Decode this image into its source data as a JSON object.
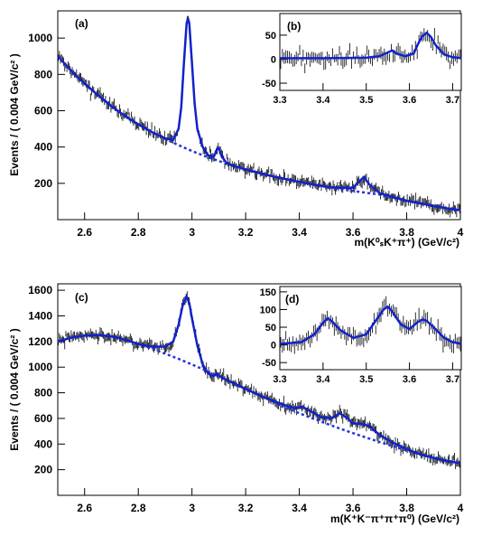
{
  "chart_data": [
    {
      "id": "a",
      "type": "line",
      "panel_label": "(a)",
      "xlabel": "m(K⁰ₛK⁺π⁺) (GeV/c²)",
      "ylabel": "Events / ( 0.004 GeV/c² )",
      "xlim": [
        2.5,
        4.0
      ],
      "ylim": [
        0,
        1150
      ],
      "xticks": [
        2.6,
        2.8,
        3.0,
        3.2,
        3.4,
        3.6,
        3.8,
        4.0
      ],
      "xtick_labels": [
        "2.6",
        "2.8",
        "3",
        "3.2",
        "3.4",
        "3.6",
        "3.8",
        "4"
      ],
      "yticks": [
        200,
        400,
        600,
        800,
        1000
      ],
      "ytick_labels": [
        "200",
        "400",
        "600",
        "800",
        "1000"
      ],
      "background": [
        [
          2.5,
          900
        ],
        [
          2.55,
          820
        ],
        [
          2.6,
          750
        ],
        [
          2.65,
          685
        ],
        [
          2.7,
          625
        ],
        [
          2.75,
          572
        ],
        [
          2.8,
          525
        ],
        [
          2.85,
          483
        ],
        [
          2.9,
          445
        ],
        [
          2.95,
          410
        ],
        [
          3.0,
          378
        ],
        [
          3.05,
          349
        ],
        [
          3.1,
          323
        ],
        [
          3.15,
          299
        ],
        [
          3.2,
          277
        ],
        [
          3.25,
          257
        ],
        [
          3.3,
          239
        ],
        [
          3.35,
          223
        ],
        [
          3.4,
          208
        ],
        [
          3.45,
          194
        ],
        [
          3.5,
          181
        ],
        [
          3.55,
          169
        ],
        [
          3.6,
          158
        ],
        [
          3.65,
          148
        ],
        [
          3.7,
          138
        ],
        [
          3.75,
          120
        ],
        [
          3.8,
          104
        ],
        [
          3.85,
          90
        ],
        [
          3.9,
          75
        ],
        [
          3.95,
          62
        ],
        [
          4.0,
          52
        ]
      ],
      "total_fit": [
        [
          2.5,
          900
        ],
        [
          2.55,
          820
        ],
        [
          2.6,
          750
        ],
        [
          2.65,
          685
        ],
        [
          2.7,
          625
        ],
        [
          2.75,
          572
        ],
        [
          2.8,
          525
        ],
        [
          2.85,
          483
        ],
        [
          2.9,
          448
        ],
        [
          2.93,
          440
        ],
        [
          2.95,
          500
        ],
        [
          2.96,
          620
        ],
        [
          2.97,
          860
        ],
        [
          2.98,
          1080
        ],
        [
          2.985,
          1110
        ],
        [
          2.99,
          1080
        ],
        [
          3.0,
          860
        ],
        [
          3.01,
          640
        ],
        [
          3.02,
          500
        ],
        [
          3.04,
          400
        ],
        [
          3.06,
          355
        ],
        [
          3.08,
          345
        ],
        [
          3.095,
          390
        ],
        [
          3.1,
          395
        ],
        [
          3.11,
          350
        ],
        [
          3.13,
          310
        ],
        [
          3.15,
          299
        ],
        [
          3.2,
          277
        ],
        [
          3.25,
          257
        ],
        [
          3.3,
          239
        ],
        [
          3.35,
          223
        ],
        [
          3.4,
          208
        ],
        [
          3.45,
          194
        ],
        [
          3.5,
          181
        ],
        [
          3.55,
          175
        ],
        [
          3.6,
          175
        ],
        [
          3.63,
          220
        ],
        [
          3.64,
          235
        ],
        [
          3.66,
          195
        ],
        [
          3.7,
          145
        ],
        [
          3.75,
          125
        ],
        [
          3.8,
          104
        ],
        [
          3.85,
          90
        ],
        [
          3.9,
          75
        ],
        [
          3.95,
          62
        ],
        [
          4.0,
          52
        ]
      ],
      "peak_data": [
        [
          2.98,
          1125
        ],
        [
          2.985,
          1110
        ],
        [
          3.1,
          420
        ],
        [
          3.64,
          240
        ]
      ]
    },
    {
      "id": "b",
      "type": "line",
      "panel_label": "(b)",
      "inset": true,
      "xlim": [
        3.3,
        3.72
      ],
      "ylim": [
        -65,
        95
      ],
      "xticks": [
        3.3,
        3.4,
        3.5,
        3.6,
        3.7
      ],
      "xtick_labels": [
        "3.3",
        "3.4",
        "3.5",
        "3.6",
        "3.7"
      ],
      "yticks": [
        -50,
        0,
        50
      ],
      "ytick_labels": [
        "-50",
        "0",
        "50"
      ],
      "fit": [
        [
          3.3,
          2
        ],
        [
          3.4,
          2
        ],
        [
          3.5,
          3
        ],
        [
          3.53,
          6
        ],
        [
          3.55,
          14
        ],
        [
          3.56,
          18
        ],
        [
          3.57,
          12
        ],
        [
          3.59,
          6
        ],
        [
          3.61,
          12
        ],
        [
          3.62,
          32
        ],
        [
          3.63,
          48
        ],
        [
          3.64,
          55
        ],
        [
          3.65,
          46
        ],
        [
          3.66,
          30
        ],
        [
          3.68,
          10
        ],
        [
          3.7,
          4
        ],
        [
          3.72,
          2
        ]
      ]
    },
    {
      "id": "c",
      "type": "line",
      "panel_label": "(c)",
      "xlabel": "m(K⁺K⁻π⁺π⁺π⁰) (GeV/c²)",
      "ylabel": "Events / ( 0.004 GeV/c² )",
      "xlim": [
        2.5,
        4.0
      ],
      "ylim": [
        0,
        1650
      ],
      "xticks": [
        2.6,
        2.8,
        3.0,
        3.2,
        3.4,
        3.6,
        3.8,
        4.0
      ],
      "xtick_labels": [
        "2.6",
        "2.8",
        "3",
        "3.2",
        "3.4",
        "3.6",
        "3.8",
        "4"
      ],
      "yticks": [
        200,
        400,
        600,
        800,
        1000,
        1200,
        1400,
        1600
      ],
      "ytick_labels": [
        "200",
        "400",
        "600",
        "800",
        "1000",
        "1200",
        "1400",
        "1600"
      ],
      "background": [
        [
          2.5,
          1200
        ],
        [
          2.55,
          1230
        ],
        [
          2.6,
          1245
        ],
        [
          2.65,
          1250
        ],
        [
          2.7,
          1240
        ],
        [
          2.75,
          1215
        ],
        [
          2.8,
          1180
        ],
        [
          2.85,
          1145
        ],
        [
          2.9,
          1105
        ],
        [
          2.95,
          1065
        ],
        [
          3.0,
          1020
        ],
        [
          3.05,
          975
        ],
        [
          3.1,
          930
        ],
        [
          3.15,
          880
        ],
        [
          3.2,
          830
        ],
        [
          3.25,
          782
        ],
        [
          3.3,
          733
        ],
        [
          3.35,
          685
        ],
        [
          3.4,
          640
        ],
        [
          3.45,
          600
        ],
        [
          3.5,
          560
        ],
        [
          3.55,
          522
        ],
        [
          3.6,
          485
        ],
        [
          3.65,
          450
        ],
        [
          3.7,
          415
        ],
        [
          3.75,
          382
        ],
        [
          3.8,
          350
        ],
        [
          3.85,
          320
        ],
        [
          3.9,
          292
        ],
        [
          3.95,
          268
        ],
        [
          4.0,
          250
        ]
      ],
      "total_fit": [
        [
          2.5,
          1200
        ],
        [
          2.55,
          1230
        ],
        [
          2.6,
          1245
        ],
        [
          2.65,
          1250
        ],
        [
          2.7,
          1240
        ],
        [
          2.75,
          1215
        ],
        [
          2.8,
          1180
        ],
        [
          2.85,
          1160
        ],
        [
          2.9,
          1160
        ],
        [
          2.93,
          1200
        ],
        [
          2.95,
          1330
        ],
        [
          2.965,
          1480
        ],
        [
          2.98,
          1550
        ],
        [
          2.99,
          1500
        ],
        [
          3.0,
          1380
        ],
        [
          3.02,
          1170
        ],
        [
          3.04,
          1020
        ],
        [
          3.06,
          950
        ],
        [
          3.08,
          930
        ],
        [
          3.095,
          950
        ],
        [
          3.11,
          920
        ],
        [
          3.15,
          880
        ],
        [
          3.2,
          830
        ],
        [
          3.25,
          782
        ],
        [
          3.3,
          740
        ],
        [
          3.35,
          700
        ],
        [
          3.38,
          680
        ],
        [
          3.41,
          690
        ],
        [
          3.44,
          660
        ],
        [
          3.48,
          610
        ],
        [
          3.52,
          600
        ],
        [
          3.55,
          640
        ],
        [
          3.58,
          600
        ],
        [
          3.6,
          560
        ],
        [
          3.63,
          560
        ],
        [
          3.66,
          540
        ],
        [
          3.7,
          470
        ],
        [
          3.75,
          410
        ],
        [
          3.8,
          360
        ],
        [
          3.85,
          320
        ],
        [
          3.9,
          292
        ],
        [
          3.95,
          268
        ],
        [
          4.0,
          250
        ]
      ]
    },
    {
      "id": "d",
      "type": "line",
      "panel_label": "(d)",
      "inset": true,
      "xlim": [
        3.3,
        3.72
      ],
      "ylim": [
        -70,
        165
      ],
      "xticks": [
        3.3,
        3.4,
        3.5,
        3.6,
        3.7
      ],
      "xtick_labels": [
        "3.3",
        "3.4",
        "3.5",
        "3.6",
        "3.7"
      ],
      "yticks": [
        -50,
        0,
        50,
        100,
        150
      ],
      "ytick_labels": [
        "-50",
        "0",
        "50",
        "100",
        "150"
      ],
      "fit": [
        [
          3.3,
          3
        ],
        [
          3.35,
          8
        ],
        [
          3.38,
          30
        ],
        [
          3.4,
          62
        ],
        [
          3.41,
          75
        ],
        [
          3.42,
          68
        ],
        [
          3.44,
          42
        ],
        [
          3.47,
          20
        ],
        [
          3.5,
          30
        ],
        [
          3.52,
          65
        ],
        [
          3.54,
          100
        ],
        [
          3.55,
          108
        ],
        [
          3.56,
          95
        ],
        [
          3.58,
          58
        ],
        [
          3.6,
          45
        ],
        [
          3.62,
          65
        ],
        [
          3.63,
          72
        ],
        [
          3.64,
          68
        ],
        [
          3.66,
          45
        ],
        [
          3.68,
          20
        ],
        [
          3.7,
          8
        ],
        [
          3.72,
          3
        ]
      ]
    }
  ]
}
